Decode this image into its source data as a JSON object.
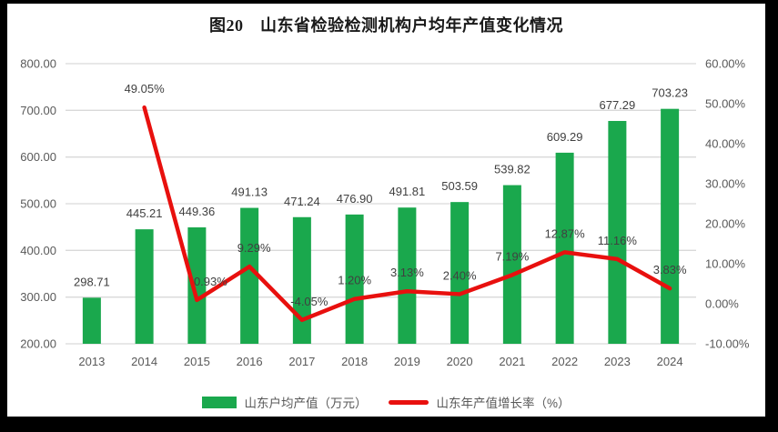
{
  "title": "图20　山东省检验检测机构户均年产值变化情况",
  "colors": {
    "bar": "#1aa84d",
    "line": "#e8100e",
    "gridline": "#d9d9d9",
    "axis_text": "#595959",
    "label_text": "#404040",
    "background": "#ffffff",
    "frame": "#000000"
  },
  "chart_data": {
    "type": "bar",
    "subtype": "combo-bar-line-dual-axis",
    "title": "图20　山东省检验检测机构户均年产值变化情况",
    "categories": [
      "2013",
      "2014",
      "2015",
      "2016",
      "2017",
      "2018",
      "2019",
      "2020",
      "2021",
      "2022",
      "2023",
      "2024"
    ],
    "series": [
      {
        "name": "山东户均产值（万元）",
        "type": "bar",
        "axis": "left",
        "color": "#1aa84d",
        "values": [
          298.71,
          445.21,
          449.36,
          491.13,
          471.24,
          476.9,
          491.81,
          503.59,
          539.82,
          609.29,
          677.29,
          703.23
        ],
        "labels": [
          "298.71",
          "445.21",
          "449.36",
          "491.13",
          "471.24",
          "476.90",
          "491.81",
          "503.59",
          "539.82",
          "609.29",
          "677.29",
          "703.23"
        ]
      },
      {
        "name": "山东年产值增长率（%）",
        "type": "line",
        "axis": "right",
        "color": "#e8100e",
        "values": [
          null,
          49.05,
          0.93,
          9.29,
          -4.05,
          1.2,
          3.13,
          2.4,
          7.19,
          12.87,
          11.16,
          3.83
        ],
        "labels": [
          null,
          "49.05%",
          "0.93%",
          "9.29%",
          "-4.05%",
          "1.20%",
          "3.13%",
          "2.40%",
          "7.19%",
          "12.87%",
          "11.16%",
          "3.83%"
        ]
      }
    ],
    "left_axis": {
      "min": 200,
      "max": 800,
      "step": 100,
      "tick_labels": [
        "800.00",
        "700.00",
        "600.00",
        "500.00",
        "400.00",
        "300.00",
        "200.00"
      ]
    },
    "right_axis": {
      "min": -10,
      "max": 60,
      "step": 10,
      "tick_labels": [
        "60.00%",
        "50.00%",
        "40.00%",
        "30.00%",
        "20.00%",
        "10.00%",
        "0.00%",
        "-10.00%"
      ]
    },
    "grid": true,
    "legend_position": "bottom"
  }
}
